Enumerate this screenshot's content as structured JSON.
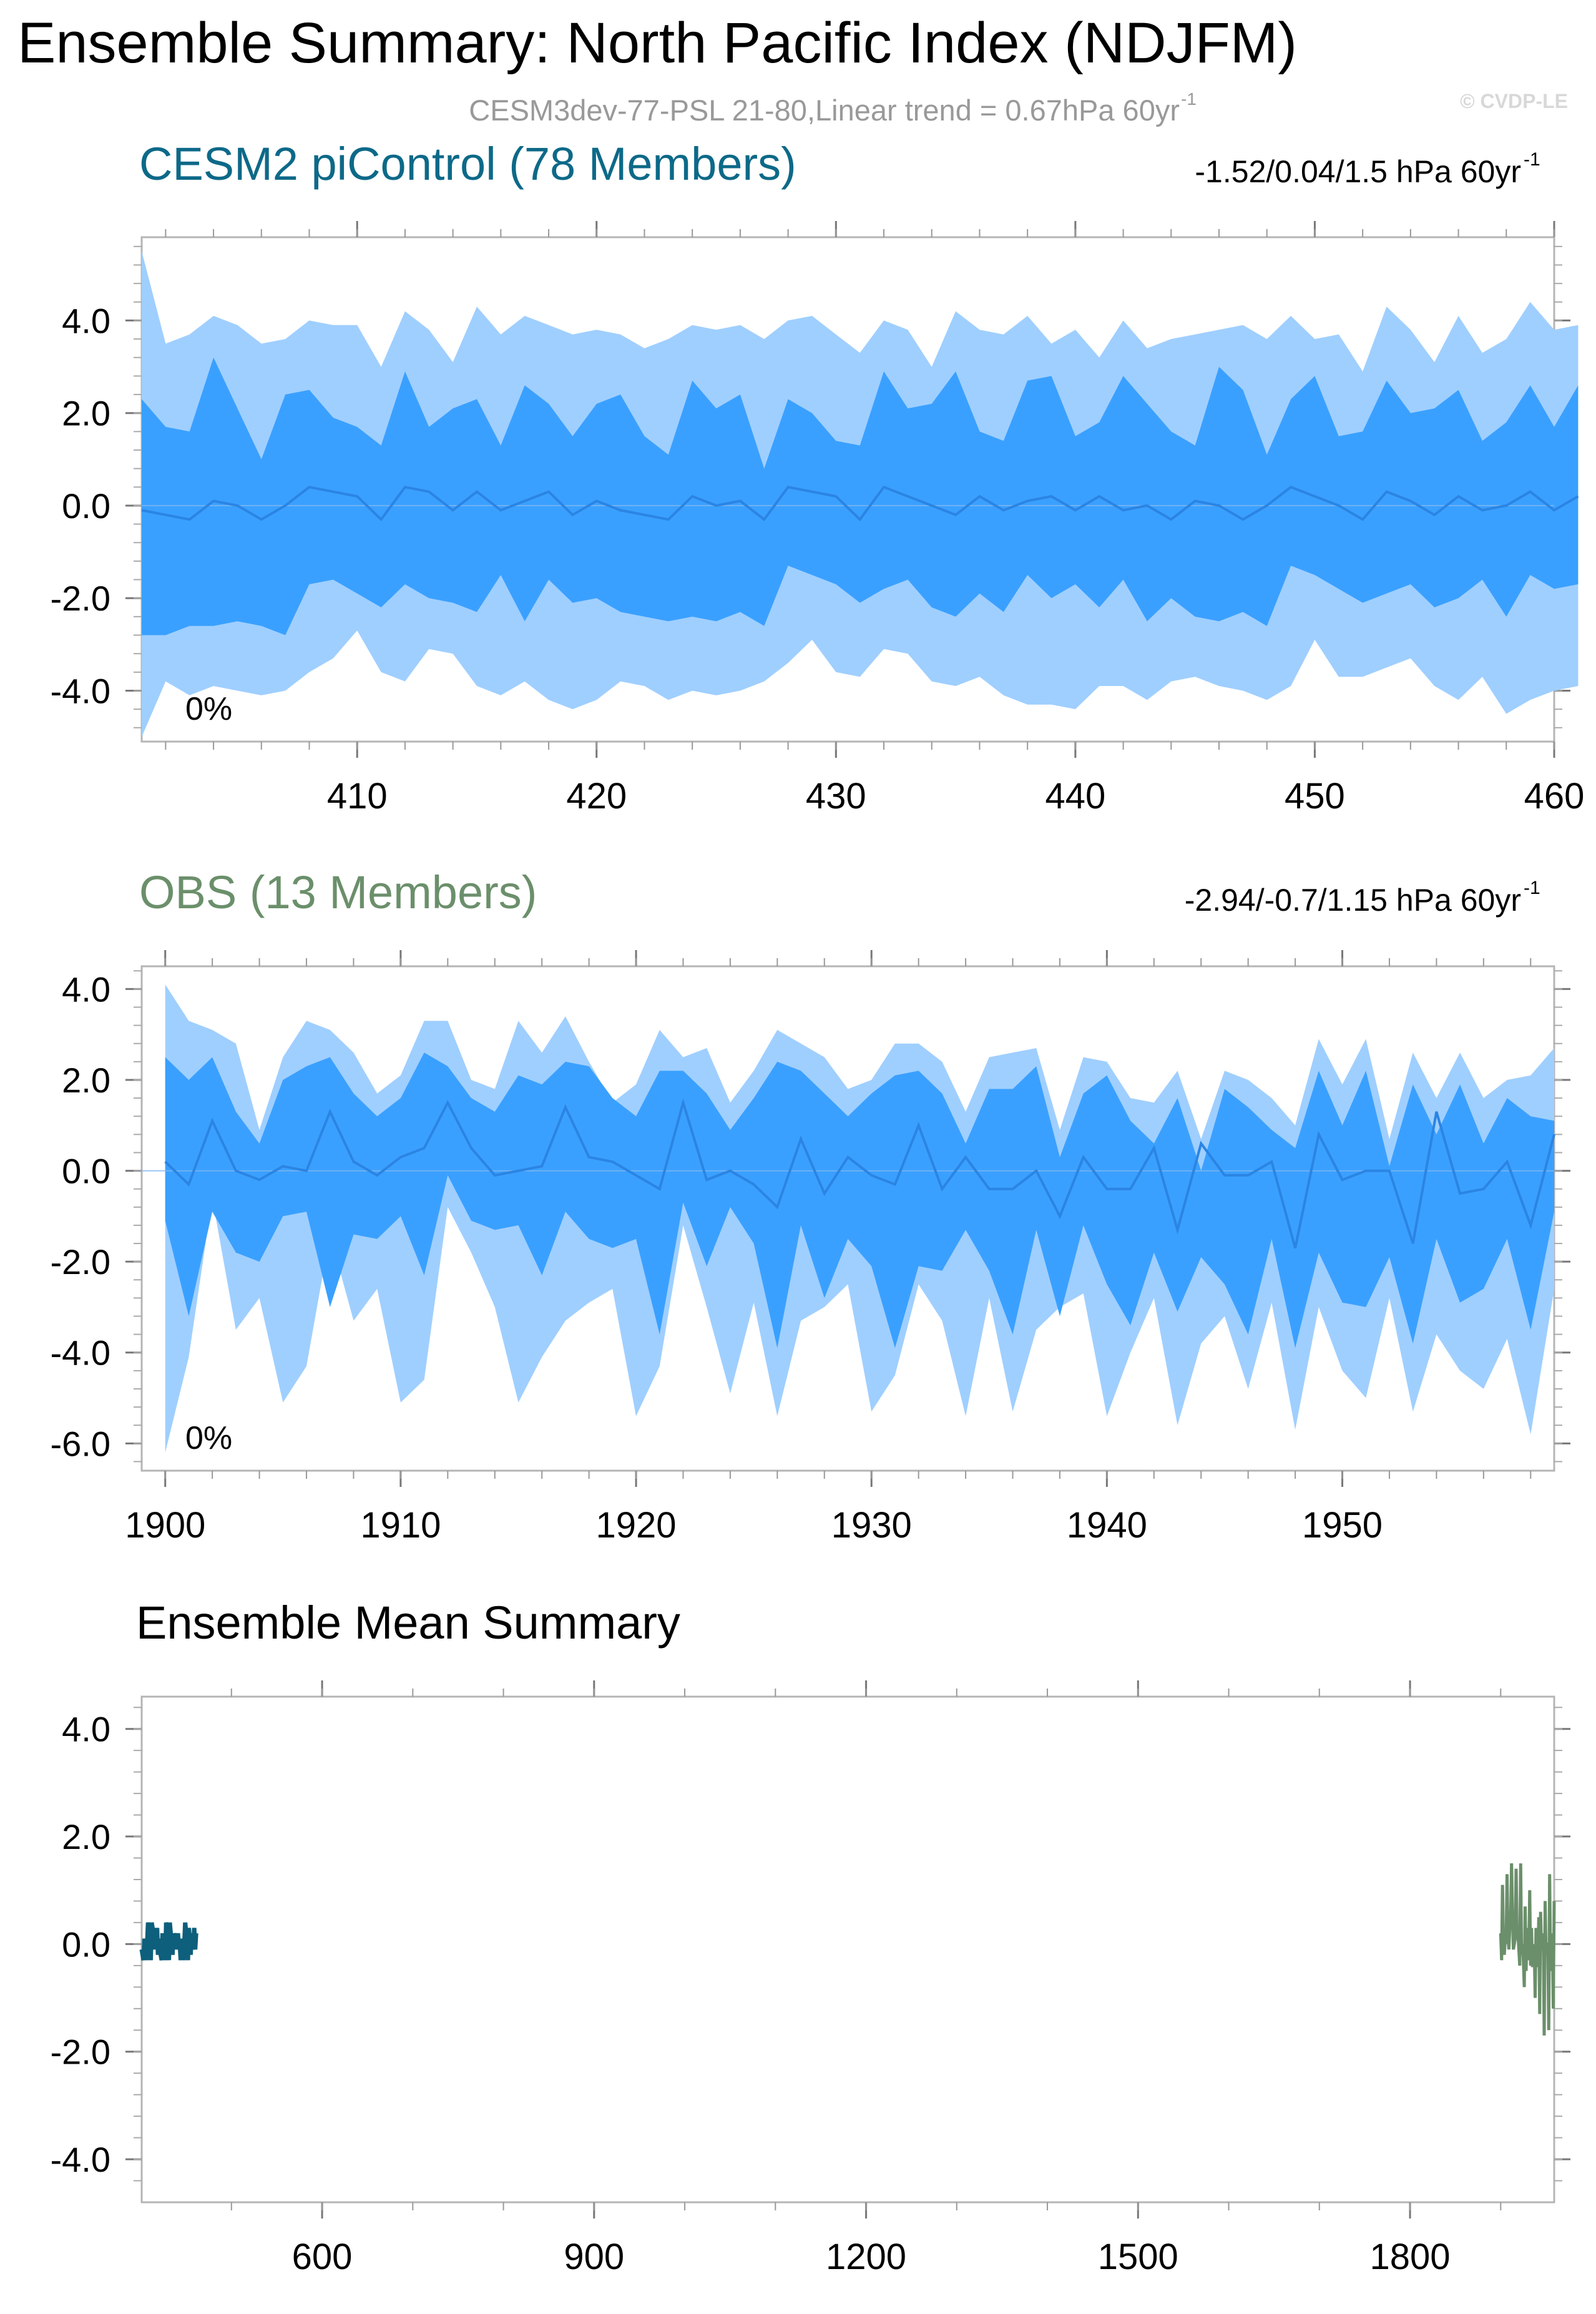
{
  "title": "Ensemble Summary: North Pacific Index (NDJFM)",
  "subtitle": "CESM3dev-77-PSL 21-80,Linear trend = 0.67hPa 60yr",
  "subtitle_sup": "-1",
  "watermark": "© CVDP-LE",
  "colors": {
    "outer_band": "#9fcfff",
    "inner_band": "#3aa0ff",
    "mean_line": "#2b84e3",
    "cesm_title": "#0d6988",
    "obs_title": "#6b8f6b",
    "cesm_mean": "#0d5f7c",
    "obs_mean": "#6b8f6b"
  },
  "chart_data": [
    {
      "type": "area",
      "title": "CESM2 piControl (78 Members)",
      "trend_label": "-1.52/0.04/1.5 hPa 60yr",
      "trend_sup": "-1",
      "percent_label": "0%",
      "xlim": [
        401,
        460
      ],
      "ylim": [
        -5.1,
        5.8
      ],
      "xticks": [
        410,
        420,
        430,
        440,
        450,
        460
      ],
      "yticks": [
        4.0,
        2.0,
        0.0,
        -2.0,
        -4.0
      ],
      "ytick_labels": [
        "4.0",
        "2.0",
        "0.0",
        "-2.0",
        "-4.0"
      ],
      "x_start": 401,
      "series": [
        {
          "role": "upper_outer",
          "values": [
            5.5,
            3.5,
            3.7,
            4.1,
            3.9,
            3.5,
            3.6,
            4.0,
            3.9,
            3.9,
            3.0,
            4.2,
            3.8,
            3.1,
            4.3,
            3.7,
            4.1,
            3.9,
            3.7,
            3.8,
            3.7,
            3.4,
            3.6,
            3.9,
            3.8,
            3.9,
            3.6,
            4.0,
            4.1,
            3.7,
            3.3,
            4.0,
            3.8,
            3.0,
            4.2,
            3.8,
            3.7,
            4.1,
            3.5,
            3.8,
            3.2,
            4.0,
            3.4,
            3.6,
            3.7,
            3.8,
            3.9,
            3.6,
            4.1,
            3.6,
            3.7,
            2.9,
            4.3,
            3.8,
            3.1,
            4.1,
            3.3,
            3.6,
            4.4,
            3.8,
            3.9
          ]
        },
        {
          "role": "upper_inner",
          "values": [
            2.3,
            1.7,
            1.6,
            3.2,
            2.1,
            1.0,
            2.4,
            2.5,
            1.9,
            1.7,
            1.3,
            2.9,
            1.7,
            2.1,
            2.3,
            1.3,
            2.6,
            2.2,
            1.5,
            2.2,
            2.4,
            1.5,
            1.1,
            2.7,
            2.1,
            2.4,
            0.8,
            2.3,
            2.0,
            1.4,
            1.3,
            2.9,
            2.1,
            2.2,
            2.9,
            1.6,
            1.4,
            2.7,
            2.8,
            1.5,
            1.8,
            2.8,
            2.2,
            1.6,
            1.3,
            3.0,
            2.5,
            1.1,
            2.3,
            2.8,
            1.5,
            1.6,
            2.7,
            2.0,
            2.1,
            2.5,
            1.4,
            1.8,
            2.6,
            1.7,
            2.6
          ]
        },
        {
          "role": "mean",
          "values": [
            -0.1,
            -0.2,
            -0.3,
            0.1,
            0.0,
            -0.3,
            0.0,
            0.4,
            0.3,
            0.2,
            -0.3,
            0.4,
            0.3,
            -0.1,
            0.3,
            -0.1,
            0.1,
            0.3,
            -0.2,
            0.1,
            -0.1,
            -0.2,
            -0.3,
            0.2,
            0.0,
            0.1,
            -0.3,
            0.4,
            0.3,
            0.2,
            -0.3,
            0.4,
            0.2,
            0.0,
            -0.2,
            0.2,
            -0.1,
            0.1,
            0.2,
            -0.1,
            0.2,
            -0.1,
            0.0,
            -0.3,
            0.1,
            0.0,
            -0.3,
            0.0,
            0.4,
            0.2,
            0.0,
            -0.3,
            0.3,
            0.1,
            -0.2,
            0.2,
            -0.1,
            0.0,
            0.3,
            -0.1,
            0.2
          ]
        },
        {
          "role": "lower_inner",
          "values": [
            -2.8,
            -2.8,
            -2.6,
            -2.6,
            -2.5,
            -2.6,
            -2.8,
            -1.7,
            -1.6,
            -1.9,
            -2.2,
            -1.7,
            -2.0,
            -2.1,
            -2.3,
            -1.5,
            -2.5,
            -1.6,
            -2.1,
            -2.0,
            -2.3,
            -2.4,
            -2.5,
            -2.4,
            -2.5,
            -2.3,
            -2.6,
            -1.3,
            -1.5,
            -1.7,
            -2.1,
            -1.8,
            -1.6,
            -2.2,
            -2.4,
            -1.9,
            -2.3,
            -1.5,
            -2.0,
            -1.7,
            -2.2,
            -1.6,
            -2.5,
            -2.0,
            -2.4,
            -2.5,
            -2.3,
            -2.6,
            -1.3,
            -1.5,
            -1.8,
            -2.1,
            -1.9,
            -1.7,
            -2.2,
            -2.0,
            -1.6,
            -2.4,
            -1.5,
            -1.8,
            -1.7
          ]
        },
        {
          "role": "lower_outer",
          "values": [
            -5.0,
            -3.8,
            -4.1,
            -3.9,
            -4.0,
            -4.1,
            -4.0,
            -3.6,
            -3.3,
            -2.7,
            -3.6,
            -3.8,
            -3.1,
            -3.2,
            -3.9,
            -4.1,
            -3.8,
            -4.2,
            -4.4,
            -4.2,
            -3.8,
            -3.9,
            -4.2,
            -4.0,
            -4.1,
            -4.0,
            -3.8,
            -3.4,
            -2.9,
            -3.6,
            -3.7,
            -3.1,
            -3.2,
            -3.8,
            -3.9,
            -3.7,
            -4.1,
            -4.3,
            -4.3,
            -4.4,
            -3.9,
            -3.9,
            -4.2,
            -3.8,
            -3.7,
            -3.9,
            -4.0,
            -4.2,
            -3.9,
            -2.9,
            -3.7,
            -3.7,
            -3.5,
            -3.3,
            -3.9,
            -4.2,
            -3.7,
            -4.5,
            -4.2,
            -4.0,
            -3.9
          ]
        }
      ]
    },
    {
      "type": "area",
      "title": "OBS (13 Members)",
      "trend_label": "-2.94/-0.7/1.15 hPa 60yr",
      "trend_sup": "-1",
      "percent_label": "0%",
      "xlim": [
        1899,
        1959
      ],
      "ylim": [
        -6.6,
        4.5
      ],
      "xticks": [
        1900,
        1910,
        1920,
        1930,
        1940,
        1950
      ],
      "yticks": [
        4.0,
        2.0,
        0.0,
        -2.0,
        -4.0,
        -6.0
      ],
      "ytick_labels": [
        "4.0",
        "2.0",
        "0.0",
        "-2.0",
        "-4.0",
        "-6.0"
      ],
      "x_start": 1900,
      "series": [
        {
          "role": "upper_outer",
          "values": [
            4.1,
            3.3,
            3.1,
            2.8,
            0.9,
            2.5,
            3.3,
            3.1,
            2.6,
            1.7,
            2.1,
            3.3,
            3.3,
            2.0,
            1.8,
            3.3,
            2.6,
            3.4,
            2.4,
            1.5,
            1.9,
            3.1,
            2.5,
            2.7,
            1.5,
            2.2,
            3.1,
            2.8,
            2.5,
            1.8,
            2.0,
            2.8,
            2.8,
            2.4,
            1.3,
            2.5,
            2.6,
            2.7,
            0.9,
            2.5,
            2.4,
            1.6,
            1.5,
            2.2,
            0.7,
            2.2,
            2.0,
            1.6,
            1.0,
            2.9,
            1.9,
            2.9,
            0.7,
            2.6,
            1.6,
            2.6,
            1.6,
            2.0,
            2.1,
            2.7
          ]
        },
        {
          "role": "upper_inner",
          "values": [
            2.5,
            2.0,
            2.5,
            1.3,
            0.6,
            2.0,
            2.3,
            2.5,
            1.7,
            1.2,
            1.6,
            2.6,
            2.3,
            1.6,
            1.3,
            2.1,
            1.9,
            2.4,
            2.3,
            1.6,
            1.2,
            2.2,
            2.2,
            1.7,
            0.9,
            1.6,
            2.4,
            2.2,
            1.7,
            1.2,
            1.7,
            2.1,
            2.2,
            1.7,
            0.6,
            1.8,
            1.8,
            2.3,
            0.3,
            1.7,
            2.1,
            1.1,
            0.6,
            1.6,
            0.0,
            1.8,
            1.4,
            0.9,
            0.5,
            2.2,
            1.0,
            2.2,
            0.1,
            1.9,
            0.8,
            1.9,
            0.6,
            1.6,
            1.2,
            1.1
          ]
        },
        {
          "role": "mean",
          "values": [
            0.2,
            -0.3,
            1.1,
            0.0,
            -0.2,
            0.1,
            0.0,
            1.3,
            0.2,
            -0.1,
            0.3,
            0.5,
            1.5,
            0.5,
            -0.1,
            0.0,
            0.1,
            1.4,
            0.3,
            0.2,
            -0.1,
            -0.4,
            1.5,
            -0.2,
            0.0,
            -0.3,
            -0.8,
            0.7,
            -0.5,
            0.3,
            -0.1,
            -0.3,
            1.0,
            -0.4,
            0.3,
            -0.4,
            -0.4,
            0.0,
            -1.0,
            0.3,
            -0.4,
            -0.4,
            0.5,
            -1.3,
            0.6,
            -0.1,
            -0.1,
            0.2,
            -1.7,
            0.8,
            -0.2,
            0.0,
            0.0,
            -1.6,
            1.3,
            -0.5,
            -0.4,
            0.2,
            -1.2,
            0.8
          ]
        },
        {
          "role": "lower_inner",
          "values": [
            -1.1,
            -3.2,
            -0.9,
            -1.8,
            -2.0,
            -1.0,
            -0.9,
            -3.0,
            -1.4,
            -1.5,
            -1.0,
            -2.3,
            -0.1,
            -1.1,
            -1.3,
            -1.2,
            -2.3,
            -0.9,
            -1.5,
            -1.7,
            -1.5,
            -3.6,
            -0.7,
            -2.1,
            -0.8,
            -1.6,
            -3.9,
            -1.2,
            -2.8,
            -1.5,
            -2.1,
            -3.9,
            -2.1,
            -2.2,
            -1.3,
            -2.2,
            -3.6,
            -1.3,
            -3.2,
            -1.2,
            -2.5,
            -3.4,
            -1.8,
            -3.1,
            -1.9,
            -2.5,
            -3.6,
            -1.5,
            -3.9,
            -1.8,
            -2.9,
            -3.0,
            -1.9,
            -3.8,
            -1.5,
            -2.9,
            -2.6,
            -1.5,
            -3.5,
            -0.9
          ]
        },
        {
          "role": "lower_outer",
          "values": [
            -6.2,
            -4.1,
            -0.6,
            -3.5,
            -2.8,
            -5.1,
            -4.3,
            -1.4,
            -3.3,
            -2.6,
            -5.1,
            -4.6,
            -0.8,
            -1.8,
            -3.0,
            -5.1,
            -4.1,
            -3.3,
            -2.9,
            -2.6,
            -5.4,
            -4.3,
            -1.2,
            -3.0,
            -4.9,
            -2.9,
            -5.4,
            -3.3,
            -3.0,
            -2.5,
            -5.3,
            -4.5,
            -2.5,
            -3.3,
            -5.4,
            -2.8,
            -5.3,
            -3.5,
            -3.0,
            -2.7,
            -5.4,
            -4.0,
            -2.8,
            -5.6,
            -3.8,
            -3.2,
            -4.8,
            -2.9,
            -5.7,
            -3.0,
            -4.4,
            -5.0,
            -2.8,
            -5.3,
            -3.6,
            -4.4,
            -4.8,
            -3.7,
            -5.8,
            -2.6
          ]
        }
      ]
    },
    {
      "type": "line",
      "title": "Ensemble Mean Summary",
      "xlim": [
        401,
        1959
      ],
      "ylim": [
        -4.8,
        4.6
      ],
      "xticks": [
        600,
        900,
        1200,
        1500,
        1800
      ],
      "yticks": [
        4.0,
        2.0,
        0.0,
        -2.0,
        -4.0
      ],
      "ytick_labels": [
        "4.0",
        "2.0",
        "0.0",
        "-2.0",
        "-4.0"
      ],
      "series_ref": [
        "cesm_mean",
        "obs_mean"
      ]
    }
  ]
}
